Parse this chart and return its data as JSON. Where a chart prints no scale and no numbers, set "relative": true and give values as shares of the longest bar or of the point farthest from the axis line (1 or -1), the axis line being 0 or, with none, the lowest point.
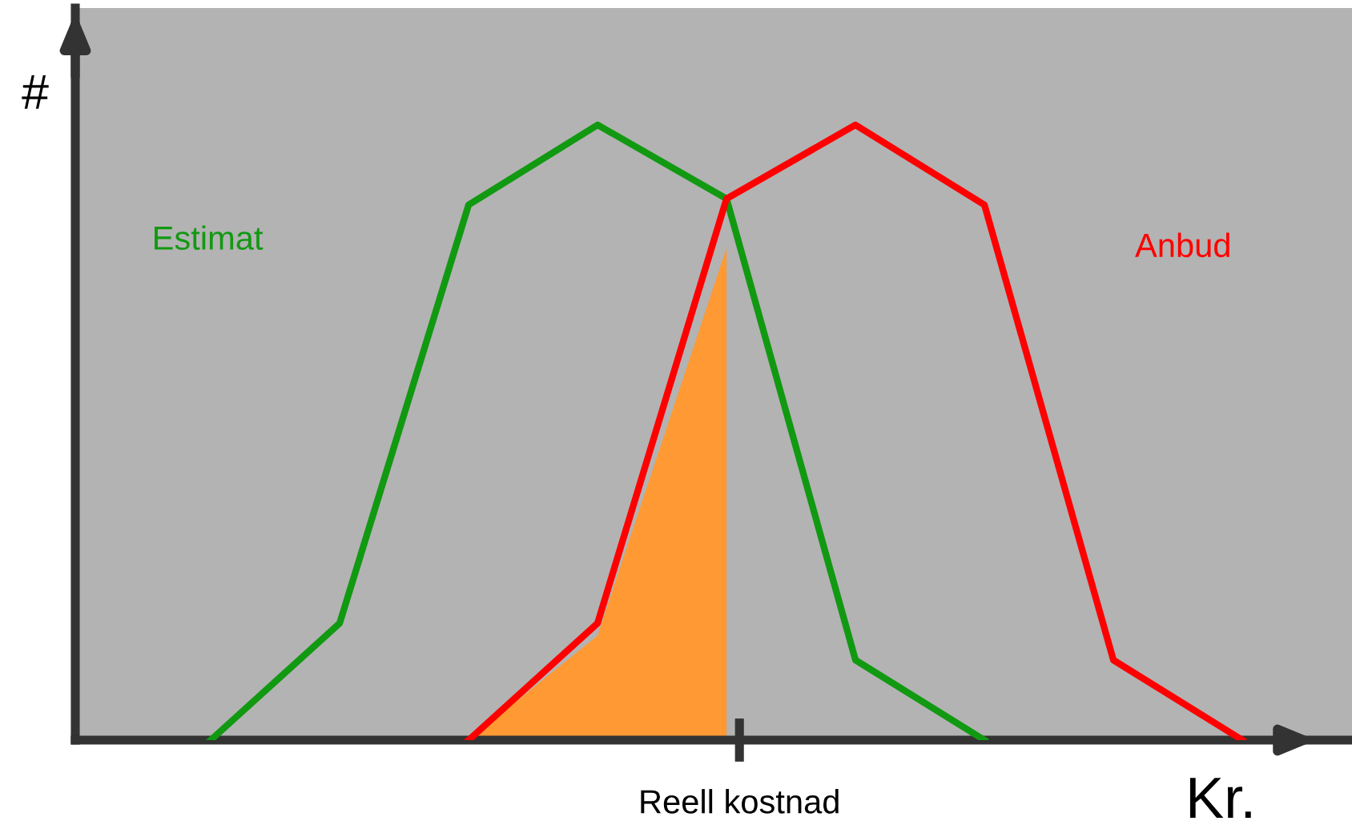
{
  "chart_data": {
    "type": "line",
    "relative": true,
    "xlabel": "Kr.",
    "ylabel": "#",
    "categories": [
      null,
      null,
      null,
      null,
      null,
      null,
      null,
      null,
      null
    ],
    "annotations": [
      "Reell kostnad"
    ],
    "legend": false,
    "marker": "none",
    "line_style": "solid",
    "series": [
      {
        "type": "area",
        "color": "#ff9933",
        "values": [
          null,
          null,
          0,
          0.17,
          0.8,
          null,
          null,
          null,
          null
        ]
      },
      {
        "name": "Estimat",
        "color": "#119911",
        "values": [
          0,
          0.19,
          0.87,
          1,
          0.88,
          0.13,
          0,
          null,
          null
        ]
      },
      {
        "name": "Anbud",
        "color": "#ff0000",
        "values": [
          null,
          null,
          0,
          0.19,
          0.88,
          1,
          0.87,
          0.13,
          0
        ]
      }
    ]
  }
}
